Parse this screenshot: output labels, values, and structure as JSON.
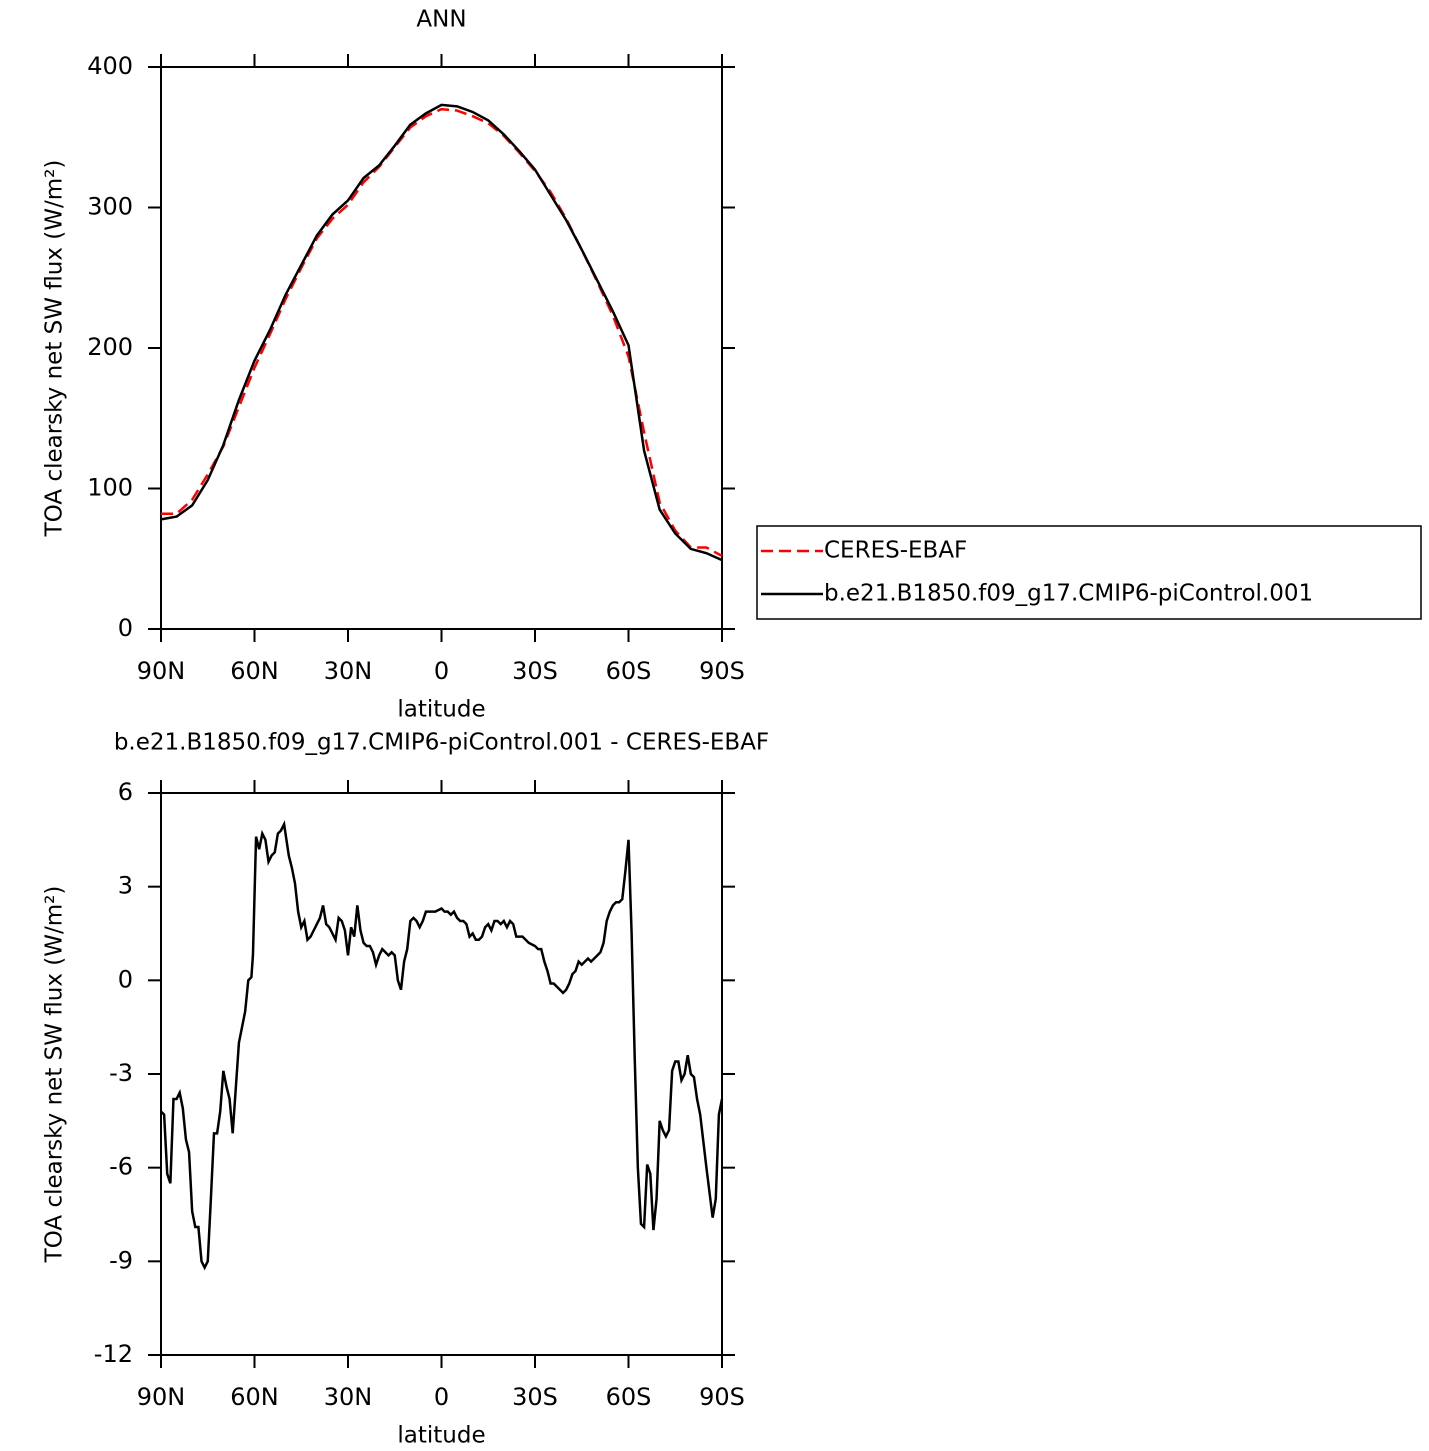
{
  "chart_data": [
    {
      "type": "line",
      "title": "ANN",
      "x_label": "latitude",
      "y_label": "TOA clearsky net SW flux (W/m²)",
      "x": [
        90,
        85,
        80,
        75,
        70,
        65,
        60,
        55,
        50,
        45,
        40,
        35,
        30,
        25,
        20,
        15,
        10,
        5,
        0,
        -5,
        -10,
        -15,
        -20,
        -25,
        -30,
        -35,
        -40,
        -45,
        -50,
        -55,
        -60,
        -65,
        -70,
        -75,
        -80,
        -85,
        -90
      ],
      "series": [
        {
          "name": "CERES-EBAF",
          "color": "#ff0000",
          "dash": true,
          "values": [
            82,
            82,
            92,
            110,
            130,
            158,
            186,
            210,
            235,
            257,
            278,
            292,
            302,
            318,
            329,
            343,
            357,
            365,
            370,
            369,
            365,
            360,
            351,
            339,
            326,
            311,
            292,
            270,
            247,
            223,
            194,
            140,
            90,
            70,
            58,
            58,
            52
          ]
        },
        {
          "name": "b.e21.B1850.f09_g17.CMIP6-piControl.001",
          "color": "#000000",
          "dash": false,
          "values": [
            78,
            80,
            88,
            106,
            131,
            163,
            191,
            213,
            238,
            259,
            280,
            295,
            305,
            321,
            330,
            344,
            359,
            367,
            373,
            372,
            368,
            362,
            352,
            340,
            327,
            309,
            291,
            270,
            248,
            226,
            202,
            127,
            85,
            68,
            57,
            54,
            49
          ]
        }
      ],
      "xlim": [
        90,
        -90
      ],
      "xticks": [
        {
          "value": 90,
          "label": "90N"
        },
        {
          "value": 60,
          "label": "60N"
        },
        {
          "value": 30,
          "label": "30N"
        },
        0,
        {
          "value": -30,
          "label": "30S"
        },
        {
          "value": -60,
          "label": "60S"
        },
        {
          "value": -90,
          "label": "90S"
        }
      ],
      "ylim": [
        0,
        400
      ],
      "yticks": [
        0,
        100,
        200,
        300,
        400
      ],
      "legend": "right"
    },
    {
      "type": "line",
      "title": "b.e21.B1850.f09_g17.CMIP6-piControl.001 - CERES-EBAF",
      "x_label": "latitude",
      "y_label": "TOA clearsky net SW flux (W/m²)",
      "x": [
        90,
        89,
        88,
        87,
        86,
        85,
        84,
        83,
        82,
        81,
        80,
        79,
        78,
        77,
        76,
        75,
        74,
        73,
        72,
        71,
        70,
        69,
        68,
        67,
        65,
        63,
        62,
        61,
        60.5,
        59.5,
        58.5,
        57.5,
        56.5,
        55.5,
        54.5,
        53.5,
        52.5,
        51.5,
        50.5,
        49,
        48,
        47,
        46,
        45,
        44,
        43,
        42,
        41,
        40,
        39,
        38,
        37,
        36,
        35,
        34,
        33,
        32,
        31,
        30,
        29,
        28,
        27,
        26,
        25,
        24,
        23,
        22,
        21,
        20,
        19,
        18,
        17,
        16,
        15,
        14,
        13,
        12,
        11,
        10,
        9,
        8,
        7,
        6,
        5,
        4,
        2,
        0,
        -1,
        -2,
        -3,
        -4,
        -5,
        -6,
        -7,
        -8,
        -9,
        -10,
        -11,
        -12,
        -13,
        -14,
        -15,
        -16,
        -17,
        -18,
        -19,
        -20,
        -21,
        -22,
        -23,
        -24,
        -25,
        -26,
        -27,
        -28,
        -30,
        -31,
        -32,
        -33,
        -34,
        -35,
        -36,
        -37,
        -38,
        -39,
        -40,
        -41,
        -42,
        -43,
        -44,
        -45,
        -46,
        -47,
        -48,
        -49,
        -50,
        -51,
        -52,
        -53,
        -54,
        -55,
        -56,
        -57,
        -58,
        -59,
        -60,
        -61,
        -62,
        -63,
        -64,
        -65,
        -66,
        -67,
        -68,
        -69,
        -70,
        -71,
        -72,
        -73,
        -74,
        -75,
        -76,
        -77,
        -78,
        -79,
        -80,
        -81,
        -82,
        -83,
        -85,
        -87,
        -88,
        -89,
        -90
      ],
      "values": [
        -4.2,
        -4.3,
        -6.2,
        -6.5,
        -3.8,
        -3.8,
        -3.6,
        -4.1,
        -5.1,
        -5.5,
        -7.4,
        -7.9,
        -7.9,
        -9.0,
        -9.2,
        -9.0,
        -7.0,
        -4.9,
        -4.9,
        -4.2,
        -2.9,
        -3.4,
        -3.8,
        -4.9,
        -2.0,
        -1.0,
        0,
        0.1,
        0.8,
        4.6,
        4.2,
        4.7,
        4.5,
        3.8,
        4.0,
        4.1,
        4.7,
        4.8,
        5.0,
        4.0,
        3.6,
        3.1,
        2.2,
        1.7,
        1.9,
        1.3,
        1.4,
        1.6,
        1.8,
        2.0,
        2.4,
        1.8,
        1.7,
        1.5,
        1.3,
        2.0,
        1.9,
        1.6,
        0.8,
        1.7,
        1.4,
        2.4,
        1.6,
        1.2,
        1.1,
        1.1,
        0.9,
        0.5,
        0.8,
        1.0,
        0.9,
        0.8,
        0.9,
        0.8,
        0,
        -0.3,
        0.6,
        1.0,
        1.9,
        2.0,
        1.9,
        1.7,
        1.9,
        2.2,
        2.2,
        2.2,
        2.3,
        2.2,
        2.2,
        2.1,
        2.2,
        2.0,
        1.9,
        1.9,
        1.8,
        1.4,
        1.5,
        1.3,
        1.3,
        1.4,
        1.7,
        1.8,
        1.6,
        1.9,
        1.9,
        1.8,
        1.9,
        1.7,
        1.9,
        1.8,
        1.4,
        1.4,
        1.4,
        1.3,
        1.2,
        1.1,
        1.0,
        1.0,
        0.6,
        0.3,
        -0.1,
        -0.1,
        -0.2,
        -0.3,
        -0.4,
        -0.3,
        -0.1,
        0.2,
        0.3,
        0.6,
        0.5,
        0.6,
        0.7,
        0.6,
        0.7,
        0.8,
        0.9,
        1.2,
        1.9,
        2.2,
        2.4,
        2.5,
        2.5,
        2.6,
        3.5,
        4.5,
        1.5,
        -2.5,
        -6.0,
        -7.8,
        -7.9,
        -5.9,
        -6.2,
        -8.0,
        -7.0,
        -4.5,
        -4.8,
        -5.0,
        -4.8,
        -2.9,
        -2.6,
        -2.6,
        -3.2,
        -3.0,
        -2.4,
        -3.0,
        -3.1,
        -3.8,
        -4.3,
        -6.0,
        -7.6,
        -7.0,
        -4.3,
        -3.8
      ],
      "color": "#000000",
      "xlim": [
        90,
        -90
      ],
      "xticks": [
        {
          "value": 90,
          "label": "90N"
        },
        {
          "value": 60,
          "label": "60N"
        },
        {
          "value": 30,
          "label": "30N"
        },
        0,
        {
          "value": -30,
          "label": "30S"
        },
        {
          "value": -60,
          "label": "60S"
        },
        {
          "value": -90,
          "label": "90S"
        }
      ],
      "ylim": [
        -12,
        6
      ],
      "yticks": [
        -12,
        -9,
        -6,
        -3,
        0,
        3,
        6
      ]
    }
  ]
}
